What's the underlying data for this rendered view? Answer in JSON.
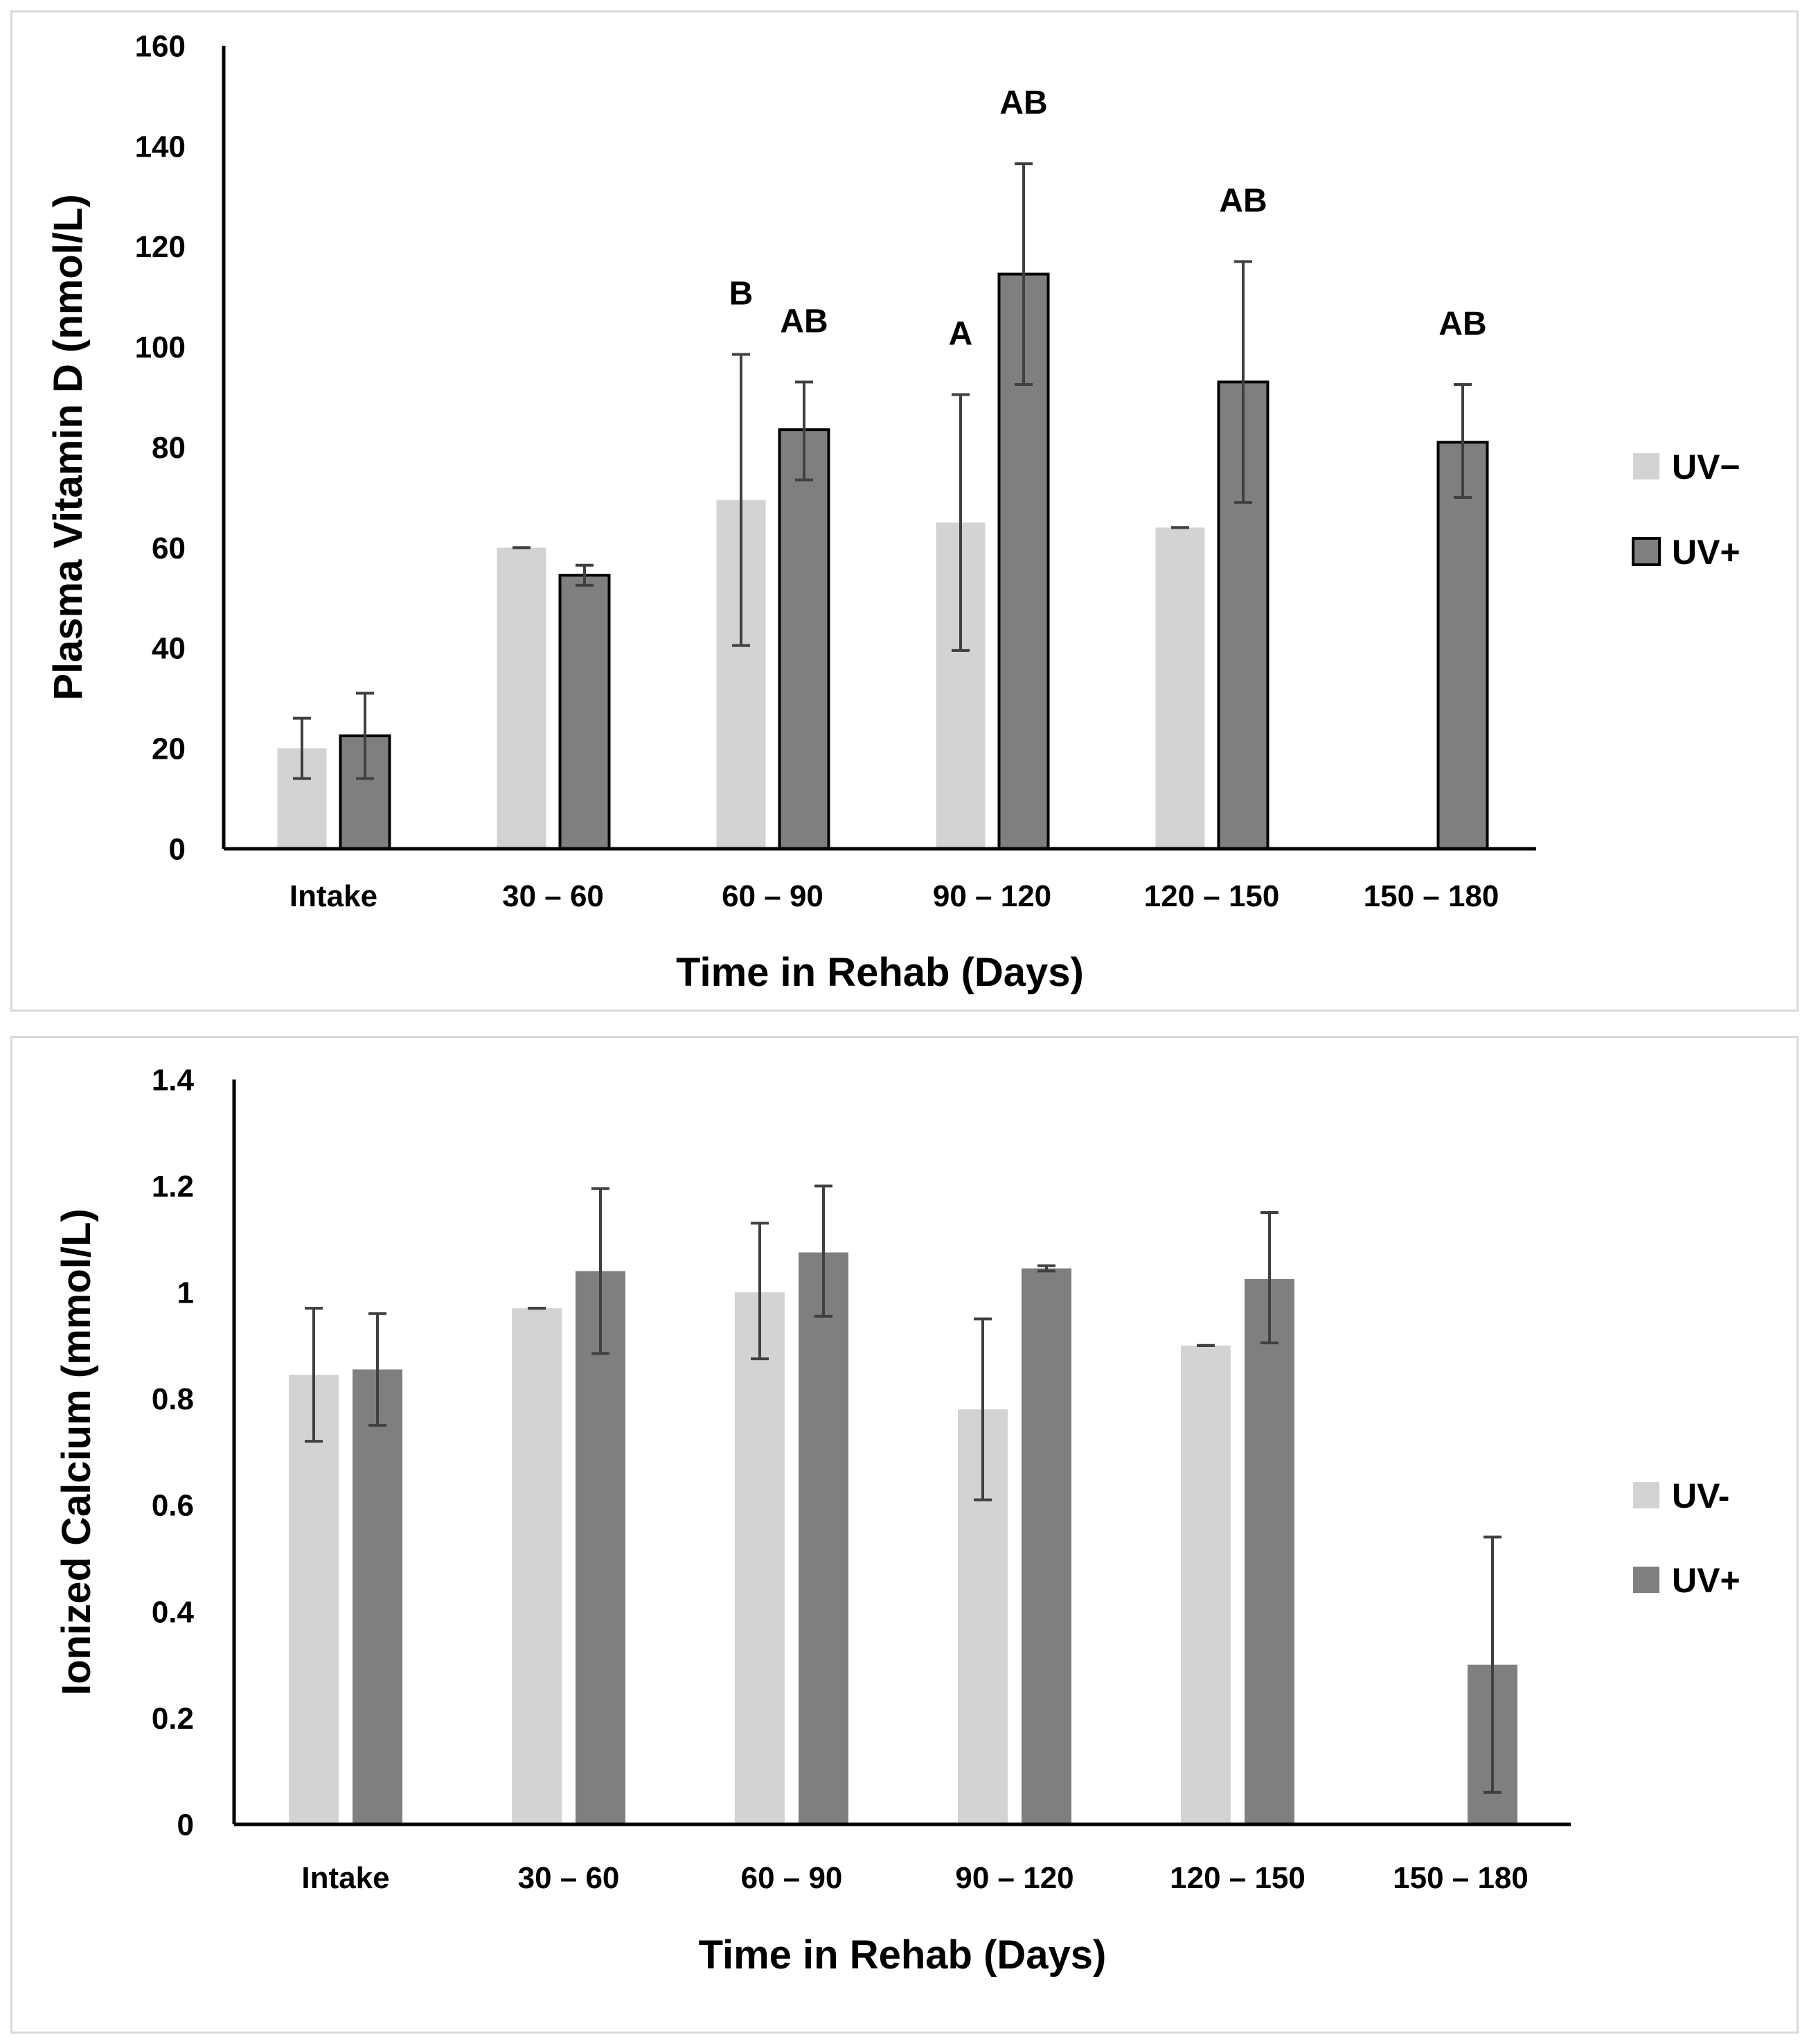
{
  "chart_data": [
    {
      "type": "bar",
      "title": "",
      "xlabel": "Time in Rehab (Days)",
      "ylabel": "Plasma Vitamin D (nmol/L)",
      "ylim": [
        0,
        160
      ],
      "yticks": [
        0,
        20,
        40,
        60,
        80,
        100,
        120,
        140,
        160
      ],
      "ytick_labels": [
        "0",
        "20",
        "40",
        "60",
        "80",
        "100",
        "120",
        "140",
        "160"
      ],
      "categories": [
        "Intake",
        "30 – 60",
        "60 – 90",
        "90 – 120",
        "120 – 150",
        "150 – 180"
      ],
      "legend_placement": "right",
      "series": [
        {
          "name": "UV−",
          "color": "#d3d3d3",
          "outlined": false,
          "values": [
            20,
            60,
            69.5,
            65,
            64,
            null
          ],
          "err_low": [
            14,
            60,
            40.5,
            39.5,
            64,
            null
          ],
          "err_high": [
            26,
            60,
            98.5,
            90.5,
            64,
            null
          ],
          "annotations": [
            "",
            "",
            "B",
            "A",
            "",
            ""
          ]
        },
        {
          "name": "UV+",
          "color": "#7f7f7f",
          "outlined": true,
          "values": [
            22.5,
            54.5,
            83.5,
            114.5,
            93,
            81
          ],
          "err_low": [
            14,
            52.5,
            73.5,
            92.5,
            69,
            70
          ],
          "err_high": [
            31,
            56.5,
            93,
            136.5,
            117,
            92.5
          ],
          "annotations": [
            "",
            "",
            "AB",
            "AB",
            "AB",
            "AB"
          ]
        }
      ]
    },
    {
      "type": "bar",
      "title": "",
      "xlabel": "Time in Rehab (Days)",
      "ylabel": "Ionized Calcium (mmol/L)",
      "ylim": [
        0,
        1.4
      ],
      "yticks": [
        0,
        0.2,
        0.4,
        0.6,
        0.8,
        1.0,
        1.2,
        1.4
      ],
      "ytick_labels": [
        "0",
        "0.2",
        "0.4",
        "0.6",
        "0.8",
        "1",
        "1.2",
        "1.4"
      ],
      "categories": [
        "Intake",
        "30 – 60",
        "60 – 90",
        "90 – 120",
        "120 – 150",
        "150 – 180"
      ],
      "legend_placement": "right",
      "series": [
        {
          "name": "UV-",
          "color": "#d3d3d3",
          "outlined": false,
          "values": [
            0.845,
            0.97,
            1.0,
            0.78,
            0.9,
            null
          ],
          "err_low": [
            0.72,
            0.97,
            0.875,
            0.61,
            0.9,
            null
          ],
          "err_high": [
            0.97,
            0.97,
            1.13,
            0.95,
            0.9,
            null
          ],
          "annotations": [
            "",
            "",
            "",
            "",
            "",
            ""
          ]
        },
        {
          "name": "UV+",
          "color": "#7f7f7f",
          "outlined": false,
          "values": [
            0.855,
            1.04,
            1.075,
            1.045,
            1.025,
            0.3
          ],
          "err_low": [
            0.75,
            0.885,
            0.955,
            1.04,
            0.905,
            0.06
          ],
          "err_high": [
            0.96,
            1.195,
            1.2,
            1.05,
            1.15,
            0.54
          ],
          "annotations": [
            "",
            "",
            "",
            "",
            "",
            ""
          ]
        }
      ]
    }
  ]
}
